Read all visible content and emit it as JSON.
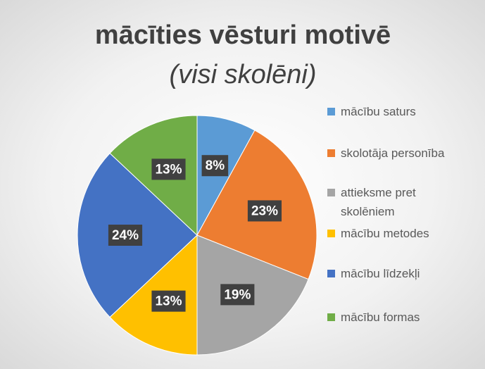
{
  "chart_data": {
    "type": "pie",
    "title": "mācīties vēsturi motivē",
    "subtitle": "(visi skolēni)",
    "categories": [
      "mācību saturs",
      "skolotāja personība",
      "attieksme pret skolēniem",
      "mācību metodes",
      "mācību līdzekļi",
      "mācību formas"
    ],
    "values": [
      8,
      23,
      19,
      13,
      24,
      13
    ],
    "value_labels": [
      "8%",
      "23%",
      "19%",
      "13%",
      "24%",
      "13%"
    ],
    "colors": [
      "#5b9bd5",
      "#ed7d31",
      "#a5a5a5",
      "#ffc000",
      "#4472c4",
      "#70ad47"
    ],
    "legend": "right"
  }
}
